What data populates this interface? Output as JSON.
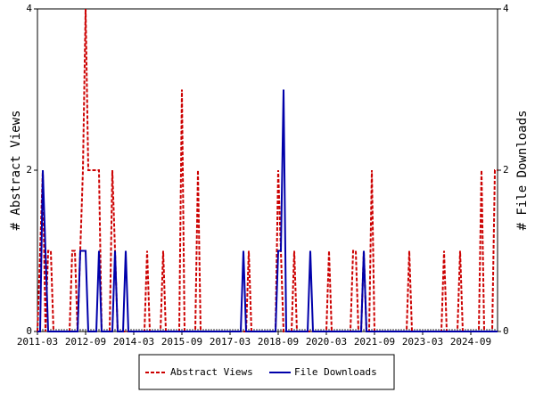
{
  "chart_data": {
    "type": "line",
    "categories": [
      "2011-03",
      null,
      null,
      null,
      null,
      null,
      null,
      null,
      null,
      null,
      null,
      null,
      null,
      null,
      null,
      null,
      null,
      null,
      "2012-09",
      null,
      null,
      null,
      null,
      null,
      null,
      null,
      null,
      null,
      null,
      null,
      null,
      null,
      null,
      null,
      null,
      null,
      "2014-03",
      null,
      null,
      null,
      null,
      null,
      null,
      null,
      null,
      null,
      null,
      null,
      null,
      null,
      null,
      null,
      null,
      null,
      "2015-09",
      null,
      null,
      null,
      null,
      null,
      null,
      null,
      null,
      null,
      null,
      null,
      null,
      null,
      null,
      null,
      null,
      null,
      "2017-03",
      null,
      null,
      null,
      null,
      null,
      null,
      null,
      null,
      null,
      null,
      null,
      null,
      null,
      null,
      null,
      null,
      null,
      "2018-09",
      null,
      null,
      null,
      null,
      null,
      null,
      null,
      null,
      null,
      null,
      null,
      null,
      null,
      null,
      null,
      null,
      null,
      "2020-03",
      null,
      null,
      null,
      null,
      null,
      null,
      null,
      null,
      null,
      null,
      null,
      null,
      null,
      null,
      null,
      null,
      null,
      "2021-09",
      null,
      null,
      null,
      null,
      null,
      null,
      null,
      null,
      null,
      null,
      null,
      null,
      null,
      null,
      null,
      null,
      null,
      "2023-03",
      null,
      null,
      null,
      null,
      null,
      null,
      null,
      null,
      null,
      null,
      null,
      null,
      null,
      null,
      null,
      null,
      null,
      "2024-09",
      null,
      null,
      null,
      null,
      null,
      null,
      null,
      null,
      null,
      null
    ],
    "series": [
      {
        "name": "Abstract Views",
        "color": "#cc0000",
        "dash": true,
        "values": [
          0,
          1,
          2,
          0,
          1,
          1,
          0,
          0,
          0,
          0,
          0,
          0,
          0,
          1,
          1,
          0,
          1,
          2,
          4,
          2,
          2,
          2,
          2,
          2,
          0,
          0,
          0,
          0,
          2,
          1,
          0,
          0,
          0,
          0,
          0,
          0,
          0,
          0,
          0,
          0,
          0,
          1,
          0,
          0,
          0,
          0,
          0,
          1,
          0,
          0,
          0,
          0,
          0,
          0,
          3,
          0,
          0,
          0,
          0,
          0,
          2,
          0,
          0,
          0,
          0,
          0,
          0,
          0,
          0,
          0,
          0,
          0,
          0,
          0,
          0,
          0,
          0,
          0,
          0,
          1,
          0,
          0,
          0,
          0,
          0,
          0,
          0,
          0,
          0,
          0,
          2,
          1,
          0,
          0,
          0,
          0,
          1,
          0,
          0,
          0,
          0,
          0,
          0,
          0,
          0,
          0,
          0,
          0,
          0,
          1,
          0,
          0,
          0,
          0,
          0,
          0,
          0,
          0,
          1,
          1,
          0,
          0,
          1,
          0,
          0,
          2,
          0,
          0,
          0,
          0,
          0,
          0,
          0,
          0,
          0,
          0,
          0,
          0,
          0,
          1,
          0,
          0,
          0,
          0,
          0,
          0,
          0,
          0,
          0,
          0,
          0,
          0,
          1,
          0,
          0,
          0,
          0,
          0,
          1,
          0,
          0,
          0,
          0,
          0,
          0,
          0,
          2,
          0,
          0,
          0,
          0,
          2,
          2
        ]
      },
      {
        "name": "File Downloads",
        "color": "#0000aa",
        "dash": false,
        "axis": "y2",
        "values": [
          0,
          0,
          2,
          1,
          0,
          0,
          0,
          0,
          0,
          0,
          0,
          0,
          0,
          0,
          0,
          0,
          1,
          1,
          1,
          0,
          0,
          0,
          0,
          1,
          0,
          0,
          0,
          0,
          0,
          1,
          0,
          0,
          0,
          1,
          0,
          0,
          0,
          0,
          0,
          0,
          0,
          0,
          0,
          0,
          0,
          0,
          0,
          0,
          0,
          0,
          0,
          0,
          0,
          0,
          0,
          0,
          0,
          0,
          0,
          0,
          0,
          0,
          0,
          0,
          0,
          0,
          0,
          0,
          0,
          0,
          0,
          0,
          0,
          0,
          0,
          0,
          0,
          1,
          0,
          0,
          0,
          0,
          0,
          0,
          0,
          0,
          0,
          0,
          0,
          0,
          1,
          1,
          3,
          0,
          0,
          0,
          0,
          0,
          0,
          0,
          0,
          0,
          1,
          0,
          0,
          0,
          0,
          0,
          0,
          0,
          0,
          0,
          0,
          0,
          0,
          0,
          0,
          0,
          0,
          0,
          0,
          0,
          1,
          0,
          0,
          0,
          0,
          0,
          0,
          0,
          0,
          0,
          0,
          0,
          0,
          0,
          0,
          0,
          0,
          0,
          0,
          0,
          0,
          0,
          0,
          0,
          0,
          0,
          0,
          0,
          0,
          0,
          0,
          0,
          0,
          0,
          0,
          0,
          0,
          0,
          0,
          0,
          0,
          0,
          0,
          0,
          0,
          0,
          0,
          0,
          0,
          0,
          0
        ]
      }
    ],
    "ylabel": "# Abstract Views",
    "y2label": "# File Downloads",
    "ylim": [
      0,
      4
    ],
    "yticks": [
      0,
      2,
      4
    ],
    "y2lim": [
      0,
      4
    ],
    "y2ticks": [
      0,
      2,
      4
    ],
    "legend": "bottom"
  }
}
